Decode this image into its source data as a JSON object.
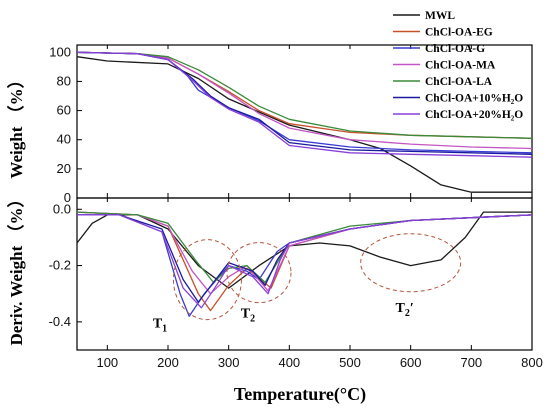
{
  "chart_data": {
    "type": "line",
    "x_label": "Temperature(°C)",
    "xlim": [
      50,
      800
    ],
    "x_ticks": [
      100,
      200,
      300,
      400,
      500,
      600,
      700,
      800
    ],
    "top": {
      "ylabel": "Weight （%）",
      "ylim": [
        0,
        105
      ],
      "y_ticks": [
        0,
        20,
        40,
        60,
        80,
        100
      ]
    },
    "bottom": {
      "ylabel": "Deriv. Weight （%）",
      "ylim": [
        -0.5,
        0.04
      ],
      "y_ticks": [
        0.0,
        -0.2,
        -0.4
      ]
    },
    "legend_position": "top-right",
    "series": [
      {
        "name": "MWL",
        "color": "#1a1a1a",
        "weight": [
          [
            50,
            97
          ],
          [
            100,
            94
          ],
          [
            200,
            92
          ],
          [
            250,
            82
          ],
          [
            300,
            68
          ],
          [
            400,
            50
          ],
          [
            500,
            40
          ],
          [
            550,
            34
          ],
          [
            600,
            22
          ],
          [
            650,
            9
          ],
          [
            700,
            4
          ],
          [
            800,
            4
          ]
        ],
        "deriv": [
          [
            50,
            -0.12
          ],
          [
            75,
            -0.05
          ],
          [
            100,
            -0.02
          ],
          [
            150,
            -0.02
          ],
          [
            200,
            -0.07
          ],
          [
            250,
            -0.2
          ],
          [
            300,
            -0.28
          ],
          [
            350,
            -0.2
          ],
          [
            400,
            -0.13
          ],
          [
            450,
            -0.12
          ],
          [
            500,
            -0.13
          ],
          [
            550,
            -0.17
          ],
          [
            600,
            -0.2
          ],
          [
            650,
            -0.18
          ],
          [
            690,
            -0.1
          ],
          [
            720,
            -0.01
          ],
          [
            800,
            -0.01
          ]
        ]
      },
      {
        "name": "ChCl-OA-EG",
        "color": "#c8502a",
        "weight": [
          [
            50,
            100
          ],
          [
            150,
            99
          ],
          [
            200,
            96
          ],
          [
            250,
            85
          ],
          [
            300,
            73
          ],
          [
            350,
            60
          ],
          [
            400,
            51
          ],
          [
            500,
            45
          ],
          [
            600,
            43
          ],
          [
            700,
            42
          ],
          [
            800,
            41
          ]
        ],
        "deriv": [
          [
            50,
            -0.01
          ],
          [
            150,
            -0.02
          ],
          [
            200,
            -0.06
          ],
          [
            250,
            -0.3
          ],
          [
            270,
            -0.36
          ],
          [
            300,
            -0.27
          ],
          [
            330,
            -0.21
          ],
          [
            370,
            -0.28
          ],
          [
            400,
            -0.13
          ],
          [
            500,
            -0.07
          ],
          [
            600,
            -0.04
          ],
          [
            800,
            -0.02
          ]
        ]
      },
      {
        "name": "ChCl-OA-G",
        "color": "#3a3ad4",
        "weight": [
          [
            50,
            100
          ],
          [
            150,
            99
          ],
          [
            200,
            95
          ],
          [
            230,
            85
          ],
          [
            250,
            74
          ],
          [
            300,
            62
          ],
          [
            350,
            53
          ],
          [
            400,
            40
          ],
          [
            500,
            35
          ],
          [
            600,
            33
          ],
          [
            700,
            32
          ],
          [
            800,
            31
          ]
        ],
        "deriv": [
          [
            50,
            -0.02
          ],
          [
            120,
            -0.02
          ],
          [
            190,
            -0.08
          ],
          [
            220,
            -0.3
          ],
          [
            235,
            -0.38
          ],
          [
            260,
            -0.3
          ],
          [
            300,
            -0.2
          ],
          [
            330,
            -0.22
          ],
          [
            350,
            -0.25
          ],
          [
            380,
            -0.15
          ],
          [
            400,
            -0.12
          ],
          [
            500,
            -0.07
          ],
          [
            600,
            -0.04
          ],
          [
            800,
            -0.02
          ]
        ]
      },
      {
        "name": "ChCl-OA-MA",
        "color": "#c455c4",
        "weight": [
          [
            50,
            100
          ],
          [
            150,
            99
          ],
          [
            200,
            96
          ],
          [
            250,
            85
          ],
          [
            300,
            72
          ],
          [
            350,
            58
          ],
          [
            400,
            48
          ],
          [
            500,
            40
          ],
          [
            600,
            37
          ],
          [
            700,
            35
          ],
          [
            800,
            34
          ]
        ],
        "deriv": [
          [
            50,
            -0.01
          ],
          [
            150,
            -0.02
          ],
          [
            200,
            -0.06
          ],
          [
            240,
            -0.22
          ],
          [
            270,
            -0.3
          ],
          [
            300,
            -0.24
          ],
          [
            330,
            -0.2
          ],
          [
            365,
            -0.29
          ],
          [
            400,
            -0.13
          ],
          [
            500,
            -0.07
          ],
          [
            600,
            -0.04
          ],
          [
            800,
            -0.02
          ]
        ]
      },
      {
        "name": "ChCl-OA-LA",
        "color": "#3a8a3a",
        "weight": [
          [
            50,
            100
          ],
          [
            150,
            99
          ],
          [
            200,
            97
          ],
          [
            250,
            88
          ],
          [
            300,
            76
          ],
          [
            350,
            63
          ],
          [
            400,
            54
          ],
          [
            500,
            46
          ],
          [
            600,
            43
          ],
          [
            700,
            42
          ],
          [
            800,
            41
          ]
        ],
        "deriv": [
          [
            50,
            -0.01
          ],
          [
            150,
            -0.02
          ],
          [
            200,
            -0.05
          ],
          [
            245,
            -0.18
          ],
          [
            275,
            -0.26
          ],
          [
            300,
            -0.21
          ],
          [
            330,
            -0.2
          ],
          [
            360,
            -0.26
          ],
          [
            400,
            -0.12
          ],
          [
            500,
            -0.06
          ],
          [
            600,
            -0.04
          ],
          [
            800,
            -0.02
          ]
        ]
      },
      {
        "name": "ChCl-OA+10%H₂O",
        "color": "#1a1aa0",
        "weight": [
          [
            50,
            100
          ],
          [
            150,
            99
          ],
          [
            200,
            95
          ],
          [
            240,
            82
          ],
          [
            270,
            70
          ],
          [
            300,
            62
          ],
          [
            350,
            54
          ],
          [
            400,
            38
          ],
          [
            500,
            33
          ],
          [
            600,
            32
          ],
          [
            700,
            31
          ],
          [
            800,
            30
          ]
        ],
        "deriv": [
          [
            50,
            -0.02
          ],
          [
            120,
            -0.02
          ],
          [
            190,
            -0.07
          ],
          [
            225,
            -0.25
          ],
          [
            250,
            -0.33
          ],
          [
            275,
            -0.26
          ],
          [
            300,
            -0.19
          ],
          [
            340,
            -0.22
          ],
          [
            360,
            -0.27
          ],
          [
            380,
            -0.18
          ],
          [
            400,
            -0.12
          ],
          [
            500,
            -0.07
          ],
          [
            600,
            -0.04
          ],
          [
            800,
            -0.02
          ]
        ]
      },
      {
        "name": "ChCl-OA+20%H₂O",
        "color": "#8a40d8",
        "weight": [
          [
            50,
            100
          ],
          [
            150,
            99
          ],
          [
            200,
            95
          ],
          [
            240,
            81
          ],
          [
            270,
            69
          ],
          [
            300,
            61
          ],
          [
            350,
            52
          ],
          [
            400,
            36
          ],
          [
            500,
            31
          ],
          [
            600,
            30
          ],
          [
            700,
            29
          ],
          [
            800,
            28
          ]
        ],
        "deriv": [
          [
            50,
            -0.02
          ],
          [
            120,
            -0.02
          ],
          [
            190,
            -0.08
          ],
          [
            225,
            -0.28
          ],
          [
            255,
            -0.35
          ],
          [
            280,
            -0.27
          ],
          [
            300,
            -0.2
          ],
          [
            340,
            -0.24
          ],
          [
            365,
            -0.3
          ],
          [
            385,
            -0.18
          ],
          [
            400,
            -0.12
          ],
          [
            500,
            -0.07
          ],
          [
            600,
            -0.04
          ],
          [
            800,
            -0.02
          ]
        ]
      }
    ],
    "annotations": [
      {
        "label": "T",
        "sub": "1"
      },
      {
        "label": "T",
        "sub": "2"
      },
      {
        "label": "T",
        "sub": "2",
        "prime": "′"
      }
    ]
  }
}
